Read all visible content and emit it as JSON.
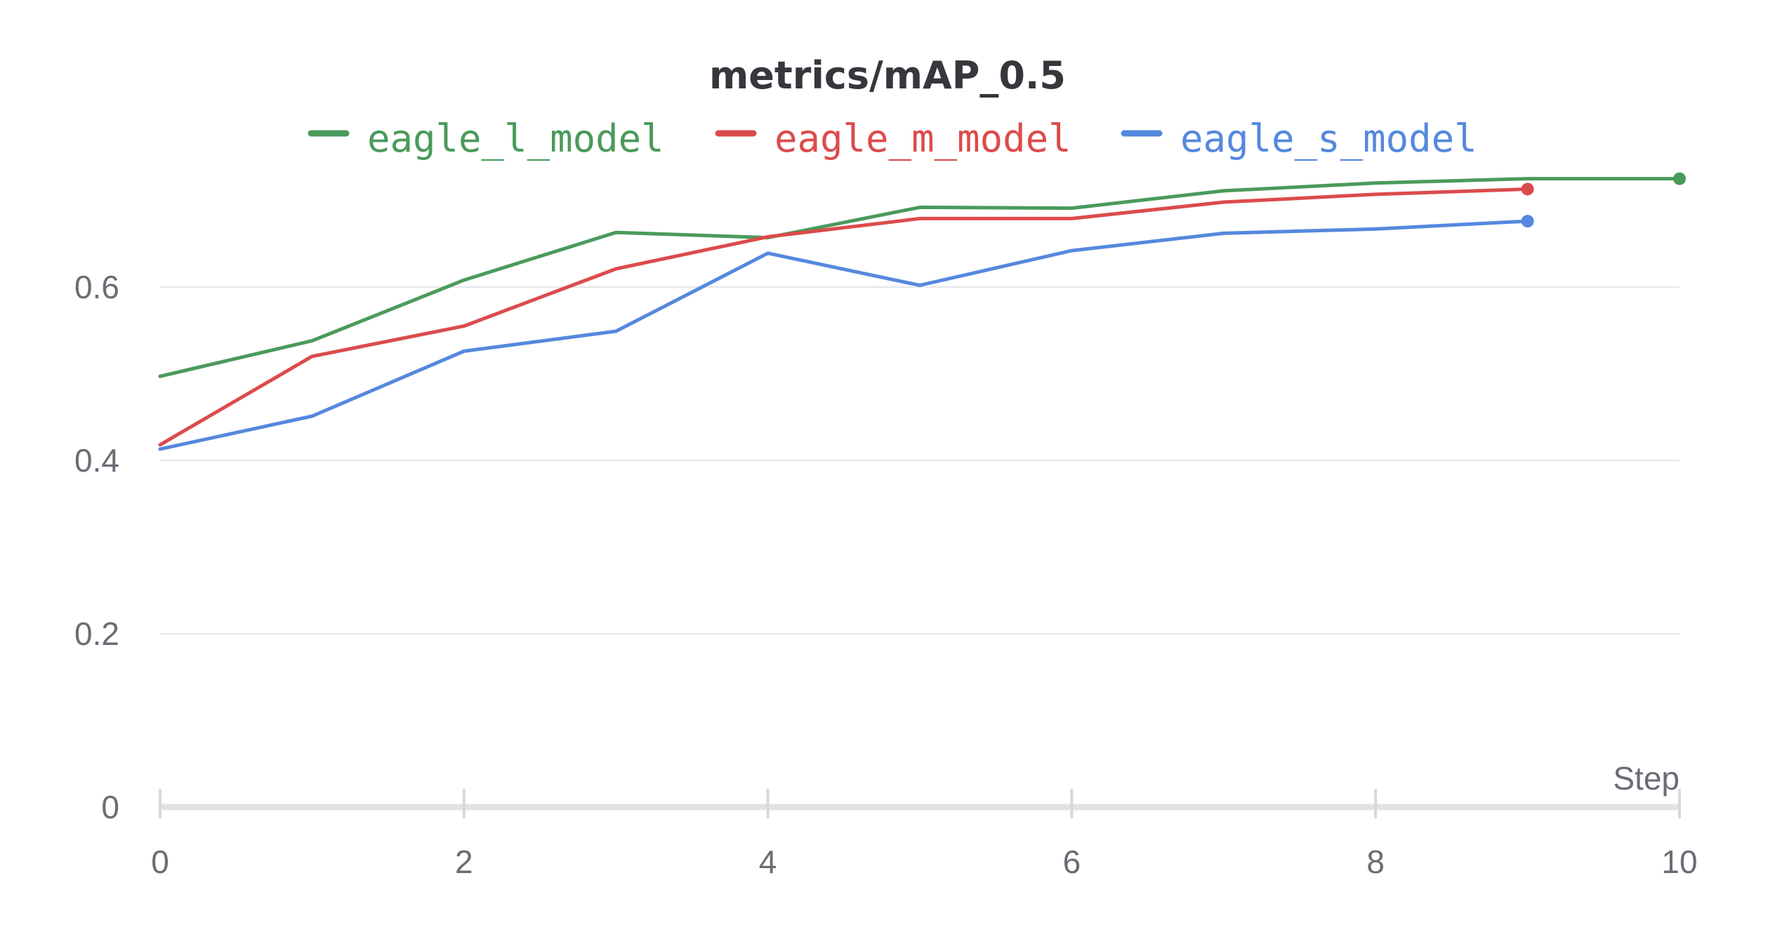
{
  "chart_data": {
    "type": "line",
    "title": "metrics/mAP_0.5",
    "xlabel": "Step",
    "ylabel": "",
    "xlim": [
      0,
      10
    ],
    "ylim": [
      0,
      0.75
    ],
    "x_ticks": [
      0,
      2,
      4,
      6,
      8,
      10
    ],
    "y_ticks": [
      0,
      0.2,
      0.4,
      0.6
    ],
    "grid": true,
    "legend_position": "top",
    "series": [
      {
        "name": "eagle_l_model",
        "color": "#4a9a5c",
        "x": [
          0,
          1,
          2,
          3,
          4,
          5,
          6,
          7,
          8,
          9,
          10
        ],
        "y": [
          0.497,
          0.538,
          0.608,
          0.663,
          0.657,
          0.692,
          0.691,
          0.711,
          0.72,
          0.725,
          0.725
        ]
      },
      {
        "name": "eagle_m_model",
        "color": "#dc4b4b",
        "x": [
          0,
          1,
          2,
          3,
          4,
          5,
          6,
          7,
          8,
          9
        ],
        "y": [
          0.418,
          0.52,
          0.555,
          0.621,
          0.658,
          0.679,
          0.679,
          0.698,
          0.707,
          0.713
        ]
      },
      {
        "name": "eagle_s_model",
        "color": "#5588de",
        "x": [
          0,
          1,
          2,
          3,
          4,
          5,
          6,
          7,
          8,
          9
        ],
        "y": [
          0.413,
          0.451,
          0.526,
          0.549,
          0.639,
          0.602,
          0.642,
          0.662,
          0.667,
          0.676
        ]
      }
    ]
  }
}
